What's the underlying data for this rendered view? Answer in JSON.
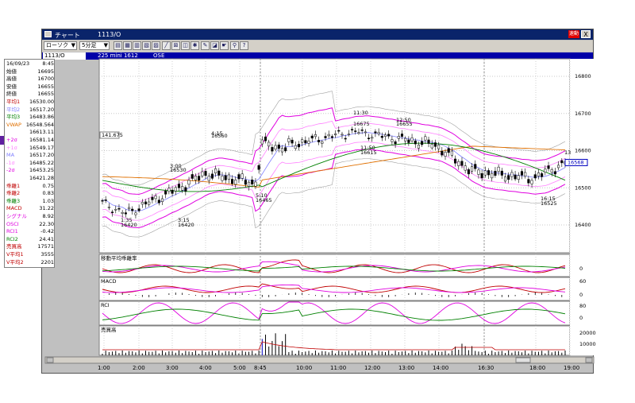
{
  "window": {
    "title": "チャート",
    "symbol": "1113/O",
    "live_label": "速動",
    "close_glyph": "X"
  },
  "toolbar": {
    "chart_type": "ローソク",
    "interval": "5分足",
    "button_icons": [
      "chart-type-icon",
      "table-icon",
      "grid-icon",
      "compare-icon",
      "volume-icon",
      "draw-line-icon",
      "zoom-icon",
      "print-icon",
      "settings-icon",
      "pen-icon",
      "eraser-icon",
      "hand-icon",
      "search-icon",
      "help-icon"
    ]
  },
  "infobar": {
    "symbol": "1113/O",
    "name": "225 mini 1612",
    "exchange": "OSE"
  },
  "left_panel": {
    "rows": [
      {
        "k": "16/09/23",
        "v": "8:45",
        "color": "#000000"
      },
      {
        "k": "始値",
        "v": "16695",
        "color": "#000000"
      },
      {
        "k": "高値",
        "v": "16700",
        "color": "#000000"
      },
      {
        "k": "安値",
        "v": "16655",
        "color": "#000000"
      },
      {
        "k": "終値",
        "v": "16655",
        "color": "#000000"
      },
      {
        "k": "平均1",
        "v": "16530.00",
        "color": "#c00000"
      },
      {
        "k": "平均2",
        "v": "16517.20",
        "color": "#8080ff"
      },
      {
        "k": "平均3",
        "v": "16483.86",
        "color": "#008000"
      },
      {
        "k": "VWAP",
        "v": "16548.564",
        "color": "#e07000"
      },
      {
        "k": "",
        "v": "16613.11",
        "color": "#000000"
      },
      {
        "k": "+2σ",
        "v": "16581.14",
        "color": "#e000e0"
      },
      {
        "k": "+1σ",
        "v": "16549.17",
        "color": "#ff80ff"
      },
      {
        "k": "MA",
        "v": "16517.20",
        "color": "#8080ff"
      },
      {
        "k": "-1σ",
        "v": "16485.22",
        "color": "#ff80ff"
      },
      {
        "k": "-2σ",
        "v": "16453.25",
        "color": "#e000e0"
      },
      {
        "k": "",
        "v": "16421.28",
        "color": "#000000"
      },
      {
        "k": "乖離1",
        "v": "0.75",
        "color": "#c00000"
      },
      {
        "k": "乖離2",
        "v": "0.83",
        "color": "#c00000"
      },
      {
        "k": "乖離3",
        "v": "1.03",
        "color": "#008000"
      },
      {
        "k": "MACD",
        "v": "31.22",
        "color": "#c00000"
      },
      {
        "k": "シグナル",
        "v": "8.92",
        "color": "#e000e0"
      },
      {
        "k": "OSCI",
        "v": "22.30",
        "color": "#e000e0"
      },
      {
        "k": "RCI1",
        "v": "-0.42",
        "color": "#e000e0"
      },
      {
        "k": "RCI2",
        "v": "24.41",
        "color": "#008000"
      },
      {
        "k": "売買高",
        "v": "17571",
        "color": "#c00000"
      },
      {
        "k": "V平均1",
        "v": "3555",
        "color": "#c00000"
      },
      {
        "k": "V平均2",
        "v": "2201",
        "color": "#c00000"
      }
    ]
  },
  "chart": {
    "price_axis": [
      "16800",
      "16700",
      "16600",
      "16500",
      "16400"
    ],
    "current_price": "16568",
    "last_label": "13",
    "left_marker": "141.675",
    "annotations": [
      {
        "t": "11:30",
        "v": "16675"
      },
      {
        "t": "12:50",
        "v": "16655"
      },
      {
        "t": "4:15",
        "v": "16560"
      },
      {
        "t": "3:00",
        "v": "16530"
      },
      {
        "t": "11:50",
        "v": "16615"
      },
      {
        "t": "5:10",
        "v": "16465"
      },
      {
        "t": "1:35",
        "v": "16420"
      },
      {
        "t": "3:15",
        "v": "16420"
      },
      {
        "t": "16:15",
        "v": "16525"
      }
    ],
    "panels": [
      {
        "title": "移動平均乖離率",
        "ticks": [
          "0"
        ]
      },
      {
        "title": "MACD",
        "ticks": [
          "60",
          "0"
        ]
      },
      {
        "title": "RCI",
        "ticks": [
          "80",
          "0"
        ]
      },
      {
        "title": "売買高",
        "ticks": [
          "20000",
          "10000"
        ]
      }
    ],
    "x_labels": [
      "1:00",
      "2:00",
      "3:00",
      "4:00",
      "5:00",
      "8:45",
      "10:00",
      "11:00",
      "12:00",
      "13:00",
      "14:00",
      "16:30",
      "18:00",
      "19:00"
    ],
    "colors": {
      "bb_outer": "#e000e0",
      "bb_inner": "#ff80ff",
      "ma": "#8080ff",
      "avg3": "#008000",
      "vwap": "#e07000",
      "avg1": "#c00000",
      "envelope": "#a0a0a0"
    }
  }
}
